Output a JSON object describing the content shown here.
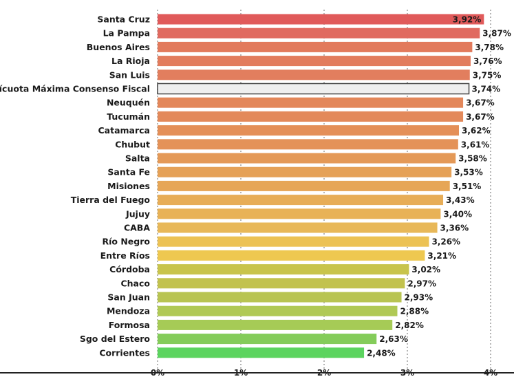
{
  "chart_data": {
    "type": "bar",
    "orientation": "horizontal",
    "title": "",
    "xlabel": "",
    "ylabel": "",
    "xlim": [
      0,
      4
    ],
    "x_ticks": [
      "0%",
      "1%",
      "2%",
      "3%",
      "4%"
    ],
    "grid": "vertical dotted",
    "legend": "none",
    "categories": [
      "Santa Cruz",
      "La Pampa",
      "Buenos Aires",
      "La Rioja",
      "San Luis",
      "Alícuota Máxima Consenso Fiscal",
      "Neuquén",
      "Tucumán",
      "Catamarca",
      "Chubut",
      "Salta",
      "Santa Fe",
      "Misiones",
      "Tierra del Fuego",
      "Jujuy",
      "CABA",
      "Río Negro",
      "Entre Ríos",
      "Córdoba",
      "Chaco",
      "San Juan",
      "Mendoza",
      "Formosa",
      "Sgo del Estero",
      "Corrientes"
    ],
    "values": [
      3.92,
      3.87,
      3.78,
      3.76,
      3.75,
      3.74,
      3.67,
      3.67,
      3.62,
      3.61,
      3.58,
      3.53,
      3.51,
      3.43,
      3.4,
      3.36,
      3.26,
      3.21,
      3.02,
      2.97,
      2.93,
      2.88,
      2.82,
      2.63,
      2.48
    ],
    "value_labels": [
      "3,92%",
      "3,87%",
      "3,78%",
      "3,76%",
      "3,75%",
      "3,74%",
      "3,67%",
      "3,67%",
      "3,62%",
      "3,61%",
      "3,58%",
      "3,53%",
      "3,51%",
      "3,43%",
      "3,40%",
      "3,36%",
      "3,26%",
      "3,21%",
      "3,02%",
      "2,97%",
      "2,93%",
      "2,88%",
      "2,82%",
      "2,63%",
      "2,48%"
    ],
    "colors": [
      "#e05a5a",
      "#e06a60",
      "#e27a5c",
      "#e27c5d",
      "#e27e5e",
      "#efefef",
      "#e3875a",
      "#e3895a",
      "#e48f58",
      "#e49258",
      "#e49957",
      "#e5a157",
      "#e6a657",
      "#e7ad57",
      "#e8b257",
      "#e8b859",
      "#ecc254",
      "#eec850",
      "#c8c44c",
      "#c2c24e",
      "#b8c452",
      "#b0c955",
      "#a6cb56",
      "#84cc5a",
      "#5cd45f"
    ],
    "highlight_outline": "#444444"
  }
}
